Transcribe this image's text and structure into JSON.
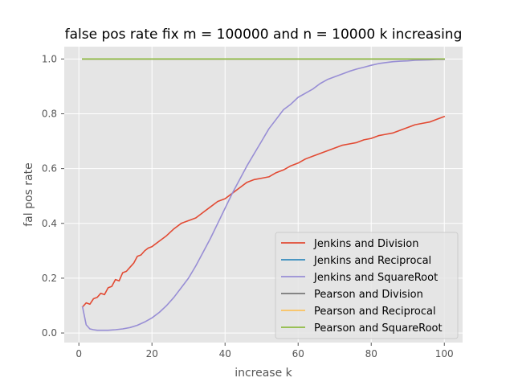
{
  "chart_data": {
    "type": "line",
    "title": "false pos rate fix m = 100000 and n = 10000 k increasing",
    "xlabel": "increase k",
    "ylabel": "fal pos rate",
    "xlim": [
      -4,
      105
    ],
    "ylim": [
      -0.035,
      1.045
    ],
    "x_ticks": [
      0,
      20,
      40,
      60,
      80,
      100
    ],
    "y_ticks": [
      0.0,
      0.2,
      0.4,
      0.6,
      0.8,
      1.0
    ],
    "x_tick_labels": [
      "0",
      "20",
      "40",
      "60",
      "80",
      "100"
    ],
    "y_tick_labels": [
      "0.0",
      "0.2",
      "0.4",
      "0.6",
      "0.8",
      "1.0"
    ],
    "grid": true,
    "legend_position": "lower-right",
    "series": [
      {
        "name": "Jenkins and Division",
        "color": "#E24A33",
        "x": [
          1,
          2,
          3,
          4,
          5,
          6,
          7,
          8,
          9,
          10,
          11,
          12,
          13,
          14,
          15,
          16,
          17,
          18,
          19,
          20,
          22,
          24,
          26,
          28,
          30,
          32,
          34,
          36,
          38,
          40,
          42,
          44,
          46,
          48,
          50,
          52,
          54,
          56,
          58,
          60,
          62,
          64,
          66,
          68,
          70,
          72,
          74,
          76,
          78,
          80,
          82,
          84,
          86,
          88,
          90,
          92,
          94,
          96,
          98,
          100
        ],
        "values": [
          0.095,
          0.11,
          0.105,
          0.125,
          0.13,
          0.145,
          0.14,
          0.165,
          0.17,
          0.195,
          0.19,
          0.22,
          0.225,
          0.24,
          0.255,
          0.28,
          0.285,
          0.3,
          0.31,
          0.315,
          0.335,
          0.355,
          0.38,
          0.4,
          0.41,
          0.42,
          0.44,
          0.46,
          0.48,
          0.49,
          0.51,
          0.53,
          0.55,
          0.56,
          0.565,
          0.57,
          0.585,
          0.595,
          0.61,
          0.62,
          0.635,
          0.645,
          0.655,
          0.665,
          0.675,
          0.685,
          0.69,
          0.695,
          0.705,
          0.71,
          0.72,
          0.725,
          0.73,
          0.74,
          0.75,
          0.76,
          0.765,
          0.77,
          0.78,
          0.79
        ]
      },
      {
        "name": "Jenkins and Reciprocal",
        "color": "#348ABD",
        "x": [
          1,
          100
        ],
        "values": [
          1.0,
          1.0
        ]
      },
      {
        "name": "Jenkins and SquareRoot",
        "color": "#988ED5",
        "x": [
          1,
          2,
          3,
          4,
          5,
          6,
          8,
          10,
          12,
          14,
          16,
          18,
          20,
          22,
          24,
          26,
          28,
          30,
          32,
          34,
          36,
          38,
          40,
          42,
          44,
          46,
          48,
          50,
          52,
          54,
          56,
          58,
          60,
          62,
          64,
          66,
          68,
          70,
          72,
          74,
          76,
          78,
          80,
          82,
          84,
          86,
          88,
          90,
          92,
          94,
          96,
          98,
          100
        ],
        "values": [
          0.095,
          0.03,
          0.015,
          0.012,
          0.01,
          0.01,
          0.01,
          0.012,
          0.015,
          0.02,
          0.028,
          0.04,
          0.055,
          0.075,
          0.1,
          0.13,
          0.165,
          0.2,
          0.245,
          0.295,
          0.345,
          0.4,
          0.455,
          0.51,
          0.56,
          0.61,
          0.655,
          0.7,
          0.745,
          0.78,
          0.815,
          0.835,
          0.86,
          0.875,
          0.89,
          0.91,
          0.925,
          0.935,
          0.945,
          0.955,
          0.963,
          0.97,
          0.977,
          0.983,
          0.987,
          0.99,
          0.992,
          0.993,
          0.995,
          0.996,
          0.997,
          0.998,
          0.998
        ]
      },
      {
        "name": "Pearson and Division",
        "color": "#777777",
        "x": [
          1,
          100
        ],
        "values": [
          1.0,
          1.0
        ]
      },
      {
        "name": "Pearson and Reciprocal",
        "color": "#FBC15E",
        "x": [
          1,
          100
        ],
        "values": [
          1.0,
          1.0
        ]
      },
      {
        "name": "Pearson and SquareRoot",
        "color": "#8EBA42",
        "x": [
          1,
          100
        ],
        "values": [
          1.0,
          1.0
        ]
      }
    ]
  }
}
